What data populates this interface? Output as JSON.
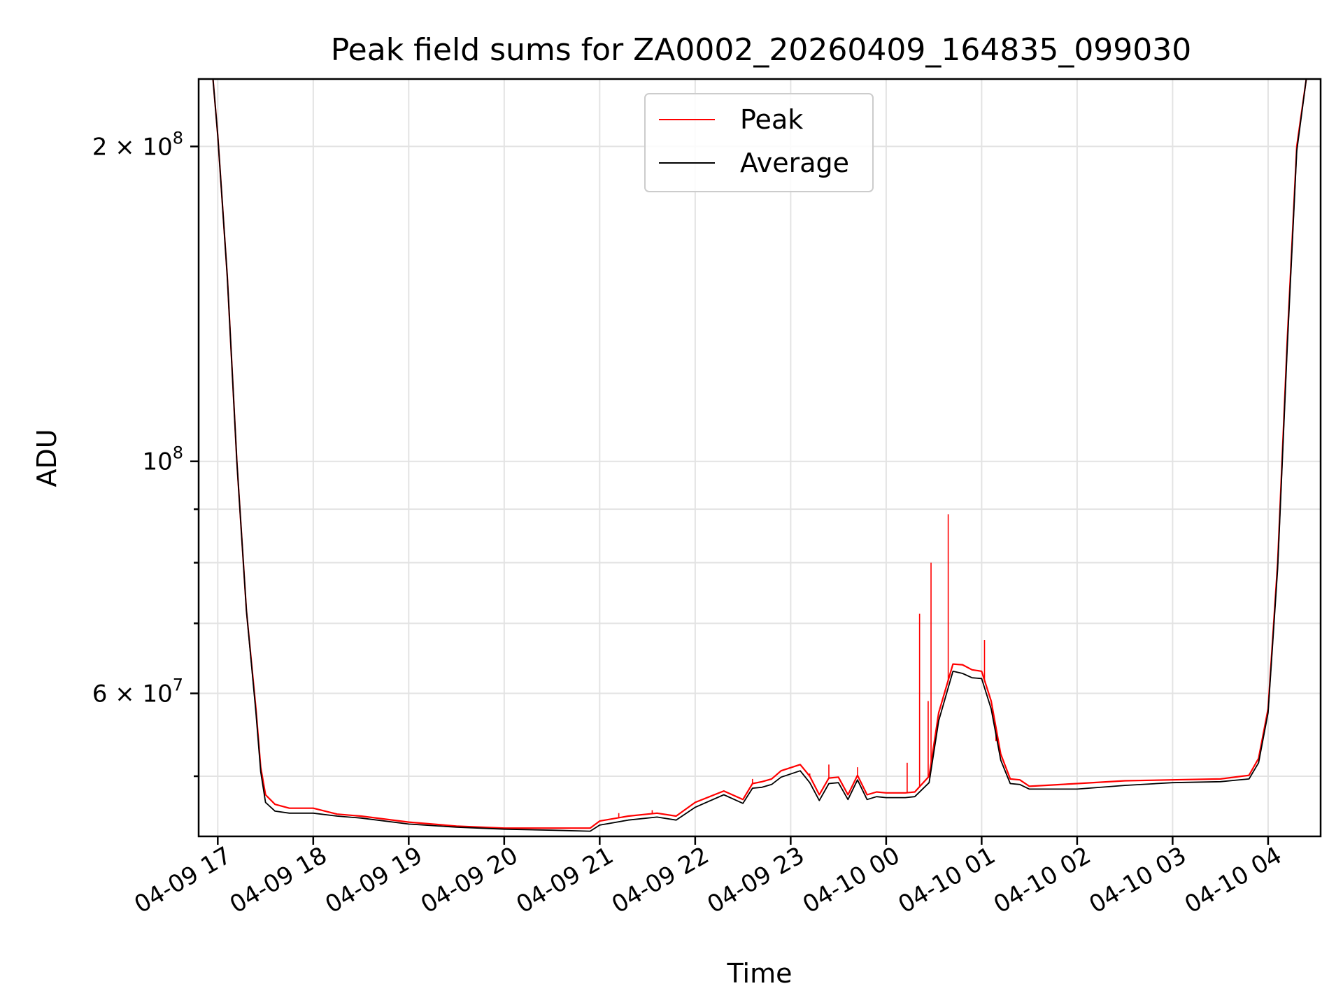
{
  "chart_data": {
    "type": "line",
    "title": "Peak field sums for ZA0002_20260409_164835_099030",
    "xlabel": "Time",
    "ylabel": "ADU",
    "yscale": "log",
    "ylim": [
      43800000,
      232000000
    ],
    "xlim_hours": [
      16.8,
      28.55
    ],
    "grid": true,
    "legend_position": "top-center",
    "x_ticks": [
      {
        "hour": 17,
        "label": "04-09 17"
      },
      {
        "hour": 18,
        "label": "04-09 18"
      },
      {
        "hour": 19,
        "label": "04-09 19"
      },
      {
        "hour": 20,
        "label": "04-09 20"
      },
      {
        "hour": 21,
        "label": "04-09 21"
      },
      {
        "hour": 22,
        "label": "04-09 22"
      },
      {
        "hour": 23,
        "label": "04-09 23"
      },
      {
        "hour": 24,
        "label": "04-10 00"
      },
      {
        "hour": 25,
        "label": "04-10 01"
      },
      {
        "hour": 26,
        "label": "04-10 02"
      },
      {
        "hour": 27,
        "label": "04-10 03"
      },
      {
        "hour": 28,
        "label": "04-10 04"
      }
    ],
    "y_major_ticks": [
      {
        "value": 60000000,
        "mantissa": "6 × 10",
        "exp": "7"
      },
      {
        "value": 100000000,
        "mantissa": "10",
        "exp": "8"
      },
      {
        "value": 200000000,
        "mantissa": "2 × 10",
        "exp": "8"
      }
    ],
    "y_minor_ticks": [
      50000000,
      70000000,
      80000000,
      90000000
    ],
    "series": [
      {
        "name": "Peak",
        "color": "#ff0000",
        "x": [
          16.95,
          17.0,
          17.1,
          17.2,
          17.3,
          17.4,
          17.45,
          17.5,
          17.6,
          17.75,
          18.0,
          18.25,
          18.5,
          19.0,
          19.5,
          20.0,
          20.5,
          20.9,
          21.0,
          21.3,
          21.6,
          21.8,
          22.0,
          22.3,
          22.5,
          22.6,
          22.7,
          22.8,
          22.9,
          23.1,
          23.2,
          23.3,
          23.4,
          23.5,
          23.6,
          23.7,
          23.8,
          23.9,
          24.0,
          24.1,
          24.2,
          24.3,
          24.45,
          24.55,
          24.7,
          24.8,
          24.9,
          25.0,
          25.1,
          25.2,
          25.3,
          25.4,
          25.5,
          26.0,
          26.5,
          27.0,
          27.5,
          27.8,
          27.9,
          28.0,
          28.1,
          28.2,
          28.3,
          28.4
        ],
        "y": [
          232000000,
          205000000,
          150000000,
          100000000,
          72000000,
          58000000,
          51000000,
          48000000,
          47000000,
          46600000,
          46600000,
          46000000,
          45800000,
          45200000,
          44800000,
          44600000,
          44600000,
          44600000,
          45300000,
          45800000,
          46100000,
          45800000,
          47200000,
          48400000,
          47500000,
          49200000,
          49400000,
          49700000,
          50600000,
          51300000,
          50000000,
          48000000,
          49800000,
          49900000,
          48000000,
          50100000,
          48000000,
          48300000,
          48200000,
          48200000,
          48200000,
          48300000,
          50000000,
          57500000,
          64000000,
          63900000,
          63200000,
          63000000,
          59000000,
          52500000,
          49700000,
          49600000,
          48900000,
          49200000,
          49500000,
          49600000,
          49700000,
          50100000,
          52000000,
          58000000,
          80000000,
          130000000,
          200000000,
          232000000
        ],
        "spikes": [
          {
            "x": 21.2,
            "y": 46100000
          },
          {
            "x": 21.55,
            "y": 46400000
          },
          {
            "x": 22.6,
            "y": 49700000
          },
          {
            "x": 23.2,
            "y": 50300000
          },
          {
            "x": 23.4,
            "y": 51300000
          },
          {
            "x": 23.7,
            "y": 51000000
          },
          {
            "x": 24.22,
            "y": 51500000
          },
          {
            "x": 24.35,
            "y": 71500000
          },
          {
            "x": 24.44,
            "y": 59000000
          },
          {
            "x": 24.47,
            "y": 80000000
          },
          {
            "x": 24.65,
            "y": 89000000
          },
          {
            "x": 25.03,
            "y": 67500000
          },
          {
            "x": 25.15,
            "y": 54000000
          }
        ]
      },
      {
        "name": "Average",
        "color": "#000000",
        "x": [
          16.95,
          17.0,
          17.1,
          17.2,
          17.3,
          17.4,
          17.45,
          17.5,
          17.6,
          17.75,
          18.0,
          18.25,
          18.5,
          19.0,
          19.5,
          20.0,
          20.5,
          20.9,
          21.0,
          21.3,
          21.6,
          21.8,
          22.0,
          22.3,
          22.5,
          22.6,
          22.7,
          22.8,
          22.9,
          23.1,
          23.2,
          23.3,
          23.4,
          23.5,
          23.6,
          23.7,
          23.8,
          23.9,
          24.0,
          24.1,
          24.2,
          24.3,
          24.45,
          24.55,
          24.7,
          24.8,
          24.9,
          25.0,
          25.1,
          25.2,
          25.3,
          25.4,
          25.5,
          26.0,
          26.5,
          27.0,
          27.5,
          27.8,
          27.9,
          28.0,
          28.1,
          28.2,
          28.3,
          28.4
        ],
        "y": [
          232000000,
          205000000,
          150000000,
          100000000,
          72000000,
          57500000,
          50500000,
          47200000,
          46300000,
          46100000,
          46100000,
          45800000,
          45600000,
          45000000,
          44700000,
          44500000,
          44400000,
          44300000,
          44900000,
          45400000,
          45700000,
          45400000,
          46700000,
          48000000,
          47100000,
          48700000,
          48800000,
          49100000,
          49900000,
          50600000,
          49300000,
          47400000,
          49200000,
          49300000,
          47500000,
          49600000,
          47500000,
          47800000,
          47700000,
          47700000,
          47700000,
          47800000,
          49300000,
          56500000,
          63000000,
          62700000,
          62100000,
          62000000,
          58000000,
          51800000,
          49200000,
          49100000,
          48600000,
          48600000,
          49000000,
          49300000,
          49400000,
          49700000,
          51500000,
          57500000,
          79000000,
          128000000,
          198000000,
          232000000
        ]
      }
    ]
  }
}
